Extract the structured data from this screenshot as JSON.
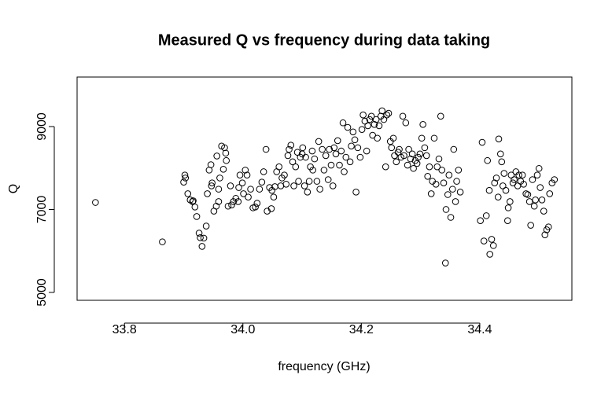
{
  "chart_data": {
    "type": "scatter",
    "title": "Measured Q vs frequency during data taking",
    "x_label": "frequency (GHz)",
    "y_label": "Q",
    "xlim": [
      33.72,
      34.5555
    ],
    "ylim": [
      4810,
      10194
    ],
    "xticks": [
      33.8,
      {
        "value": 34,
        "label": "34.0"
      },
      34.2,
      34.4
    ],
    "yticks": [
      5000,
      7000,
      9000
    ],
    "color": "#000000",
    "x": [
      33.751,
      33.864,
      33.902,
      33.903,
      33.9,
      33.907,
      33.911,
      33.915,
      33.919,
      33.916,
      33.922,
      33.926,
      33.928,
      33.931,
      33.934,
      33.938,
      33.94,
      33.943,
      33.946,
      33.947,
      33.948,
      33.951,
      33.955,
      33.956,
      33.959,
      33.959,
      33.961,
      33.964,
      33.967,
      33.969,
      33.971,
      33.972,
      33.975,
      33.979,
      33.981,
      33.984,
      33.988,
      33.992,
      33.993,
      33.995,
      33.999,
      34.001,
      34.004,
      34.007,
      34.009,
      34.013,
      34.017,
      34.021,
      34.024,
      34.028,
      34.032,
      34.035,
      34.039,
      34.041,
      34.045,
      34.048,
      34.049,
      34.052,
      34.054,
      34.057,
      34.061,
      34.064,
      34.066,
      34.07,
      34.073,
      34.076,
      34.078,
      34.081,
      34.084,
      34.086,
      34.089,
      34.092,
      34.094,
      34.097,
      34.1,
      34.101,
      34.104,
      34.106,
      34.109,
      34.112,
      34.114,
      34.117,
      34.118,
      34.121,
      34.125,
      34.128,
      34.13,
      34.134,
      34.137,
      34.14,
      34.144,
      34.146,
      34.149,
      34.152,
      34.154,
      34.157,
      34.16,
      34.163,
      34.166,
      34.169,
      34.171,
      34.174,
      34.177,
      34.181,
      34.183,
      34.186,
      34.189,
      34.191,
      34.194,
      34.198,
      34.201,
      34.203,
      34.206,
      34.209,
      34.211,
      34.214,
      34.217,
      34.219,
      34.222,
      34.225,
      34.227,
      34.23,
      34.233,
      34.235,
      34.238,
      34.241,
      34.243,
      34.246,
      34.249,
      34.251,
      34.254,
      34.256,
      34.259,
      34.262,
      34.264,
      34.267,
      34.27,
      34.272,
      34.275,
      34.278,
      34.28,
      34.283,
      34.286,
      34.288,
      34.291,
      34.294,
      34.296,
      34.299,
      34.302,
      34.304,
      34.307,
      34.31,
      34.312,
      34.315,
      34.318,
      34.32,
      34.323,
      34.326,
      34.328,
      34.331,
      34.334,
      34.336,
      34.339,
      34.342,
      34.343,
      34.346,
      34.348,
      34.351,
      34.354,
      34.356,
      34.359,
      34.361,
      34.364,
      34.367,
      34.401,
      34.404,
      34.407,
      34.411,
      34.413,
      34.416,
      34.417,
      34.42,
      34.423,
      34.425,
      34.428,
      34.431,
      34.432,
      34.435,
      34.437,
      34.439,
      34.441,
      34.444,
      34.447,
      34.448,
      34.451,
      34.453,
      34.456,
      34.458,
      34.461,
      34.464,
      34.466,
      34.469,
      34.472,
      34.474,
      34.478,
      34.481,
      34.484,
      34.486,
      34.489,
      34.492,
      34.494,
      34.497,
      34.5,
      34.502,
      34.505,
      34.508,
      34.51,
      34.513,
      34.516,
      34.518,
      34.522,
      34.526
    ],
    "y": [
      7170,
      6220,
      7830,
      7760,
      7660,
      7380,
      7230,
      7190,
      7060,
      7210,
      6830,
      6430,
      6320,
      6110,
      6310,
      6600,
      7380,
      7950,
      8080,
      7570,
      7640,
      6960,
      7080,
      8290,
      7190,
      7490,
      7760,
      8530,
      7970,
      8490,
      8360,
      8180,
      7080,
      7570,
      7110,
      7190,
      7270,
      7190,
      7530,
      7830,
      7640,
      7380,
      7950,
      7830,
      7300,
      7490,
      7040,
      7060,
      7150,
      7490,
      7660,
      7910,
      8450,
      6960,
      7530,
      7020,
      7460,
      7300,
      7550,
      7910,
      8030,
      7570,
      7760,
      7830,
      7610,
      8300,
      8450,
      8550,
      8150,
      7570,
      8030,
      8380,
      7680,
      8260,
      8340,
      8490,
      7570,
      8260,
      7420,
      7680,
      8030,
      8410,
      7950,
      8220,
      7680,
      8640,
      7490,
      8450,
      7950,
      8300,
      7720,
      8450,
      8070,
      7570,
      8490,
      8340,
      8660,
      8070,
      8410,
      9090,
      7910,
      8260,
      8980,
      8150,
      8530,
      8870,
      8680,
      7420,
      8490,
      8260,
      8930,
      9280,
      9130,
      8410,
      9020,
      9170,
      9250,
      8790,
      9050,
      9170,
      8720,
      9020,
      9250,
      9380,
      9170,
      8030,
      9280,
      9320,
      8640,
      8490,
      8720,
      8300,
      8150,
      8380,
      8450,
      8260,
      9250,
      8300,
      9090,
      8070,
      8450,
      8220,
      8340,
      7990,
      8180,
      8110,
      8260,
      8340,
      8720,
      9050,
      8490,
      8300,
      7800,
      8030,
      7380,
      7680,
      8720,
      7610,
      8030,
      8220,
      9250,
      7950,
      7640,
      5710,
      7000,
      7360,
      7830,
      6810,
      7490,
      8450,
      7190,
      7680,
      7950,
      7420,
      6730,
      8620,
      6240,
      6850,
      8180,
      7460,
      5920,
      6280,
      6130,
      7640,
      7760,
      7300,
      8700,
      8340,
      8150,
      7570,
      7870,
      7460,
      6730,
      7040,
      7190,
      7830,
      7640,
      7720,
      7910,
      7570,
      7830,
      7680,
      7830,
      7610,
      7380,
      7360,
      7190,
      6620,
      7720,
      7080,
      7230,
      7830,
      7990,
      7530,
      7230,
      6960,
      6390,
      6510,
      6580,
      7380,
      7640,
      7720
    ]
  }
}
